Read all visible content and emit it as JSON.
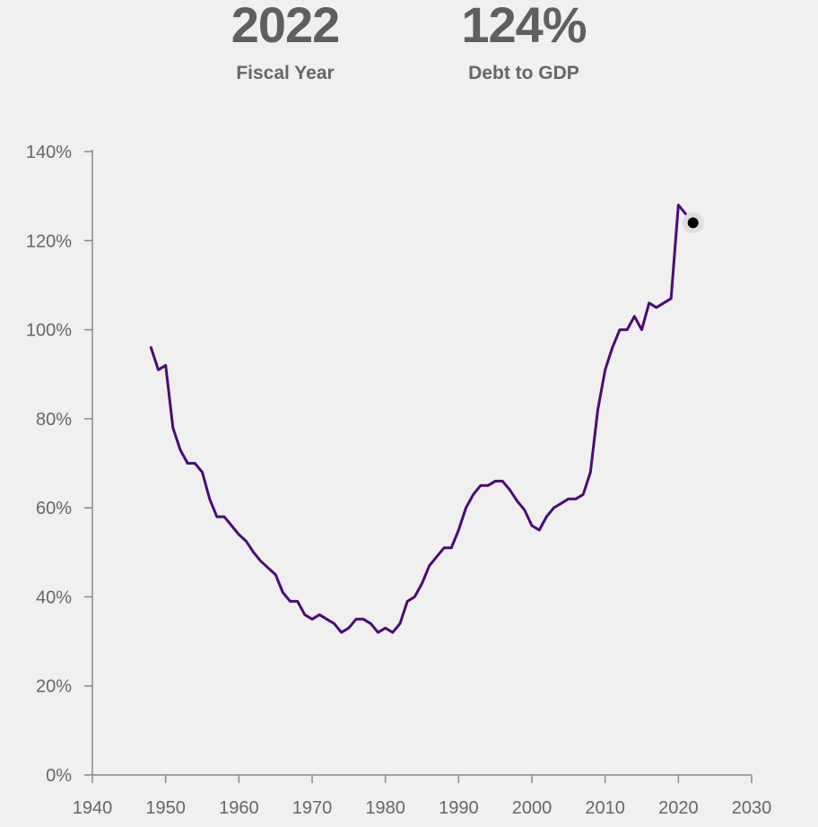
{
  "header": {
    "year_value": "2022",
    "year_label": "Fiscal Year",
    "debt_value": "124%",
    "debt_label": "Debt to GDP"
  },
  "colors": {
    "background": "#f1f0f1",
    "line": "#4b0a78",
    "axis": "#888888",
    "highlight_point": "#000000",
    "text": "#666666"
  },
  "chart_data": {
    "type": "line",
    "title": "",
    "xlabel": "",
    "ylabel": "",
    "xlim": [
      1940,
      2030
    ],
    "ylim": [
      0,
      140
    ],
    "x_ticks": [
      "1940",
      "1950",
      "1960",
      "1970",
      "1980",
      "1990",
      "2000",
      "2010",
      "2020",
      "2030"
    ],
    "y_ticks": [
      "0%",
      "20%",
      "40%",
      "60%",
      "80%",
      "100%",
      "120%",
      "140%"
    ],
    "grid": false,
    "highlight": {
      "x": 2022,
      "y": 124
    },
    "series": [
      {
        "x": [
          1948,
          1949,
          1950,
          1951,
          1952,
          1953,
          1954,
          1955,
          1956,
          1957,
          1958,
          1959,
          1960,
          1961,
          1962,
          1963,
          1964,
          1965,
          1966,
          1967,
          1968,
          1969,
          1970,
          1971,
          1972,
          1973,
          1974,
          1975,
          1976,
          1977,
          1978,
          1979,
          1980,
          1981,
          1982,
          1983,
          1984,
          1985,
          1986,
          1987,
          1988,
          1989,
          1990,
          1991,
          1992,
          1993,
          1994,
          1995,
          1996,
          1997,
          1998,
          1999,
          2000,
          2001,
          2002,
          2003,
          2004,
          2005,
          2006,
          2007,
          2008,
          2009,
          2010,
          2011,
          2012,
          2013,
          2014,
          2015,
          2016,
          2017,
          2018,
          2019,
          2020,
          2021,
          2022
        ],
        "values": [
          96,
          91,
          92,
          78,
          73,
          70,
          70,
          68,
          62,
          58,
          58,
          56,
          54,
          52.5,
          50,
          48,
          46.5,
          45,
          41,
          39,
          39,
          36,
          35,
          36,
          35,
          34,
          32,
          33,
          35,
          35,
          34,
          32,
          33,
          32,
          34,
          39,
          40,
          43,
          47,
          49,
          51,
          51,
          55,
          60,
          63,
          65,
          65,
          66,
          66,
          64,
          61.5,
          59.5,
          56,
          55,
          58,
          60,
          61,
          62,
          62,
          63,
          68,
          82,
          91,
          96,
          100,
          100,
          103,
          100,
          106,
          105,
          106,
          107,
          128,
          126,
          124
        ]
      }
    ]
  }
}
